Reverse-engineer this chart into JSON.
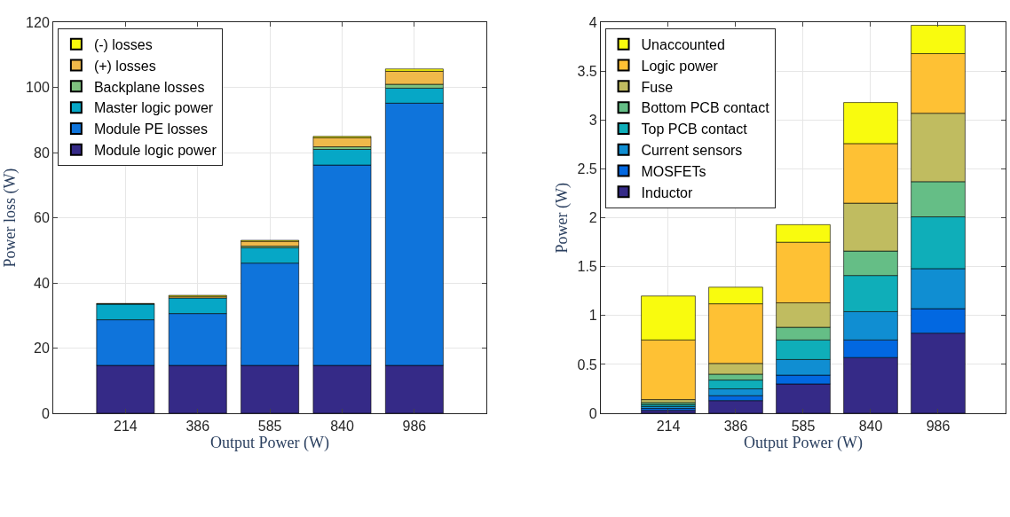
{
  "chart_data": [
    {
      "type": "bar",
      "stacked": true,
      "xlabel": "Output Power (W)",
      "ylabel": "Power loss (W)",
      "categories": [
        "214",
        "386",
        "585",
        "840",
        "986"
      ],
      "ylim": [
        0,
        120
      ],
      "yticks": [
        0,
        20,
        40,
        60,
        80,
        100,
        120
      ],
      "grid": true,
      "legend": "top left",
      "series": [
        {
          "name": "Module logic power",
          "color": "#352a87",
          "values": [
            14.7,
            14.7,
            14.7,
            14.7,
            14.7
          ]
        },
        {
          "name": "Module PE losses",
          "color": "#0f74db",
          "values": [
            14.0,
            15.9,
            31.4,
            61.5,
            80.5
          ]
        },
        {
          "name": "Master logic power",
          "color": "#06a7c6",
          "values": [
            4.8,
            4.8,
            4.7,
            4.8,
            4.6
          ]
        },
        {
          "name": "Backplane losses",
          "color": "#7fc27f",
          "values": [
            null,
            null,
            0.5,
            0.8,
            1.2
          ]
        },
        {
          "name": "(+) losses",
          "color": "#f0b94a",
          "values": [
            0.1,
            0.5,
            1.5,
            2.8,
            4.0
          ]
        },
        {
          "name": "(-) losses",
          "color": "#f8fa0d",
          "values": [
            0.1,
            0.3,
            0.3,
            0.4,
            0.7
          ]
        }
      ]
    },
    {
      "type": "bar",
      "stacked": true,
      "xlabel": "Output Power (W)",
      "ylabel": "Power (W)",
      "categories": [
        "214",
        "386",
        "585",
        "840",
        "986"
      ],
      "ylim": [
        0,
        4
      ],
      "yticks": [
        0,
        0.5,
        1,
        1.5,
        2,
        2.5,
        3,
        3.5,
        4
      ],
      "grid": true,
      "legend": "top left",
      "series": [
        {
          "name": "Inductor",
          "color": "#352a87",
          "values": [
            0.03,
            0.13,
            0.3,
            0.57,
            0.82
          ]
        },
        {
          "name": "MOSFETs",
          "color": "#0268e1",
          "values": [
            0.02,
            0.05,
            0.09,
            0.18,
            0.25
          ]
        },
        {
          "name": "Current sensors",
          "color": "#108ed2",
          "values": [
            0.02,
            0.07,
            0.16,
            0.29,
            0.41
          ]
        },
        {
          "name": "Top PCB contact",
          "color": "#0faeb9",
          "values": [
            0.02,
            0.09,
            0.2,
            0.37,
            0.53
          ]
        },
        {
          "name": "Bottom PCB contact",
          "color": "#65be86",
          "values": [
            0.02,
            0.06,
            0.13,
            0.25,
            0.36
          ]
        },
        {
          "name": "Fuse",
          "color": "#c0bc60",
          "values": [
            0.03,
            0.11,
            0.25,
            0.49,
            0.7
          ]
        },
        {
          "name": "Logic power",
          "color": "#fec134",
          "values": [
            0.61,
            0.61,
            0.62,
            0.61,
            0.61
          ]
        },
        {
          "name": "Unaccounted",
          "color": "#f9fb0e",
          "values": [
            0.45,
            0.17,
            0.18,
            0.42,
            0.29
          ]
        }
      ]
    }
  ]
}
